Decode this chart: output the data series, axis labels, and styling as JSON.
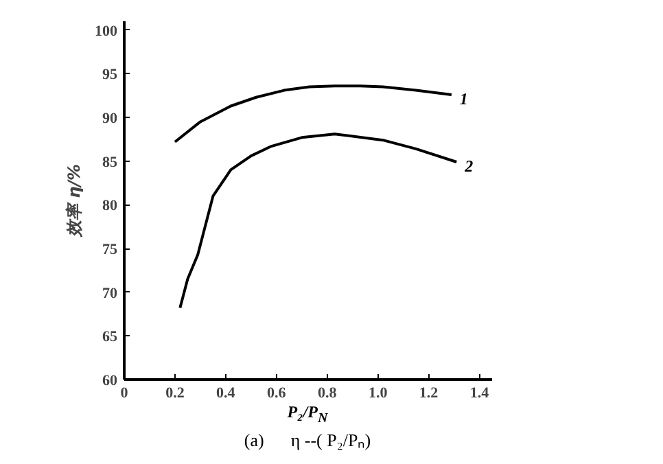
{
  "chart_data": {
    "type": "line",
    "xlabel": "P₂/P$_{N}$",
    "ylabel": "效率 η/%",
    "annotations": [
      "(a)      η --( P₂/Pₙ)"
    ],
    "xlim": [
      0,
      1.45
    ],
    "ylim": [
      60,
      101
    ],
    "xticks": [
      0,
      0.2,
      0.4,
      0.6,
      0.8,
      {
        "value": 1,
        "label": "1.0"
      },
      1.2,
      1.4
    ],
    "yticks": [
      60,
      65,
      70,
      75,
      80,
      85,
      90,
      95,
      100
    ],
    "grid": false,
    "marker": "none",
    "line_style": "solid",
    "series": [
      {
        "name": "1",
        "color": "#000000",
        "x": [
          0.2,
          0.3,
          0.42,
          0.52,
          0.63,
          0.73,
          0.83,
          0.93,
          1.02,
          1.15,
          1.29
        ],
        "values": [
          87.2,
          89.5,
          91.3,
          92.3,
          93.1,
          93.5,
          93.6,
          93.6,
          93.5,
          93.1,
          92.6
        ]
      },
      {
        "name": "2",
        "color": "#000000",
        "x": [
          0.22,
          0.25,
          0.29,
          0.35,
          0.42,
          0.5,
          0.58,
          0.7,
          0.83,
          1.02,
          1.15,
          1.31
        ],
        "values": [
          68.2,
          71.5,
          74.3,
          81.0,
          84.0,
          85.6,
          86.7,
          87.7,
          88.1,
          87.4,
          86.4,
          84.9
        ]
      }
    ]
  }
}
